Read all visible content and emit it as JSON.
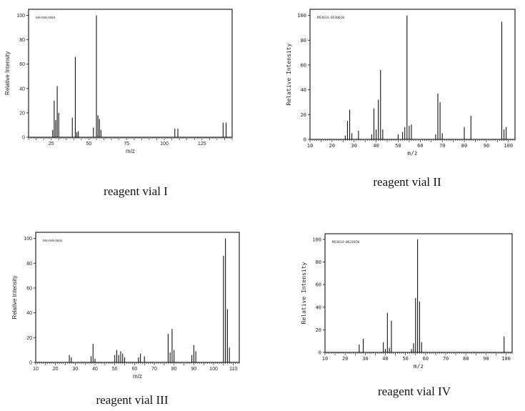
{
  "chart_data": [
    {
      "type": "bar",
      "title": "MS-NW-0063",
      "caption": "reagent vial I",
      "xlabel": "m/z",
      "ylabel": "Relative Intensity",
      "xlim": [
        10,
        145
      ],
      "ylim": [
        0,
        105
      ],
      "xticks": [
        25,
        50,
        75,
        100,
        125
      ],
      "yticks": [
        0,
        20,
        40,
        60,
        80,
        100
      ],
      "x": [
        26,
        27,
        28,
        29,
        30,
        39,
        41,
        42,
        43,
        53,
        55,
        56,
        57,
        58,
        107,
        109,
        139,
        141
      ],
      "values": [
        6,
        30,
        14,
        42,
        20,
        16,
        66,
        4,
        5,
        8,
        100,
        18,
        15,
        6,
        7,
        7,
        12,
        12
      ]
    },
    {
      "type": "bar",
      "title": "MS3014-05306CW",
      "caption": "reagent vial II",
      "xlabel": "m/z",
      "ylabel": "Relative Intensity",
      "xlim": [
        10,
        103
      ],
      "ylim": [
        0,
        105
      ],
      "xticks": [
        10,
        20,
        30,
        40,
        50,
        60,
        70,
        80,
        90,
        100
      ],
      "yticks": [
        0,
        20,
        40,
        60,
        80,
        100
      ],
      "x": [
        26,
        27,
        28,
        29,
        32,
        38,
        39,
        40,
        41,
        42,
        43,
        50,
        52,
        53,
        54,
        55,
        56,
        67,
        68,
        69,
        70,
        80,
        83,
        97,
        98,
        99
      ],
      "values": [
        3,
        15,
        24,
        5,
        7,
        4,
        25,
        8,
        32,
        56,
        8,
        4,
        6,
        10,
        100,
        11,
        12,
        4,
        37,
        30,
        5,
        10,
        19,
        95,
        8,
        10
      ]
    },
    {
      "type": "bar",
      "title": "MS-NW-3634",
      "caption": "reagent vial III",
      "xlabel": "m/z",
      "ylabel": "Relative Intensity",
      "xlim": [
        10,
        113
      ],
      "ylim": [
        0,
        105
      ],
      "xticks": [
        10,
        20,
        30,
        40,
        50,
        60,
        70,
        80,
        90,
        100,
        110
      ],
      "yticks": [
        0,
        20,
        40,
        60,
        80,
        100
      ],
      "x": [
        27,
        28,
        38,
        39,
        40,
        50,
        51,
        52,
        53,
        54,
        55,
        62,
        63,
        65,
        77,
        78,
        79,
        80,
        89,
        90,
        91,
        105,
        106,
        107,
        108
      ],
      "values": [
        6,
        4,
        5,
        15,
        3,
        6,
        10,
        6,
        9,
        7,
        4,
        4,
        7,
        5,
        23,
        8,
        27,
        10,
        6,
        14,
        9,
        86,
        100,
        43,
        12
      ]
    },
    {
      "type": "bar",
      "title": "MS3014-06316CW",
      "caption": "reagent vial IV",
      "xlabel": "m/z",
      "ylabel": "Relative Intensity",
      "xlim": [
        10,
        103
      ],
      "ylim": [
        0,
        105
      ],
      "xticks": [
        10,
        20,
        30,
        40,
        50,
        60,
        70,
        80,
        90,
        100
      ],
      "yticks": [
        0,
        20,
        40,
        60,
        80,
        100
      ],
      "x": [
        27,
        29,
        39,
        40,
        41,
        42,
        43,
        53,
        54,
        55,
        56,
        57,
        58,
        99
      ],
      "values": [
        7,
        12,
        9,
        3,
        35,
        4,
        28,
        3,
        8,
        48,
        100,
        45,
        9,
        14
      ]
    }
  ]
}
